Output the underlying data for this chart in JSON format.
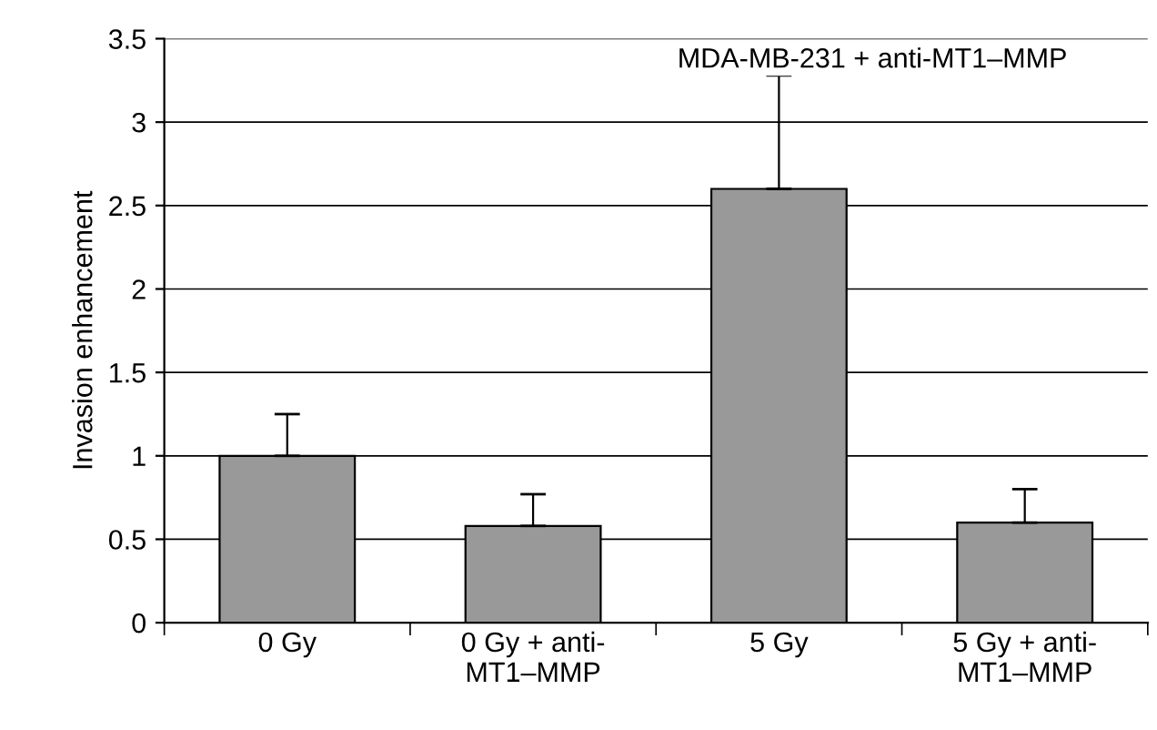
{
  "chart_data": {
    "type": "bar",
    "title": "MDA-MB-231 + anti-MT1–MMP",
    "ylabel": "Invasion enhancement",
    "categories": [
      "0 Gy",
      "0 Gy + anti-\nMT1–MMP",
      "5 Gy",
      "5 Gy + anti-\nMT1–MMP"
    ],
    "values": [
      1.0,
      0.58,
      2.6,
      0.6
    ],
    "errors": [
      [
        1.0,
        1.25
      ],
      [
        0.58,
        0.77
      ],
      [
        2.6,
        3.28
      ],
      [
        0.6,
        0.8
      ]
    ],
    "color": "#999999",
    "ylim": [
      0,
      3.5
    ],
    "yticks": [
      0,
      0.5,
      1,
      1.5,
      2,
      2.5,
      3,
      3.5
    ],
    "grid": "y"
  }
}
